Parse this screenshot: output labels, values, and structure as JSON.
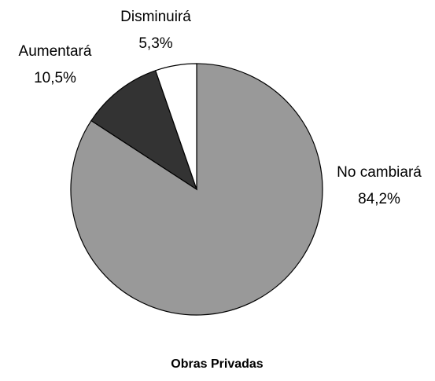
{
  "chart_data": {
    "type": "pie",
    "title": "Obras Privadas",
    "categories": [
      "No cambiará",
      "Aumentará",
      "Disminuirá"
    ],
    "values": [
      84.2,
      10.5,
      5.3
    ],
    "value_labels": [
      "84,2%",
      "10,5%",
      "5,3%"
    ],
    "colors": [
      "#999999",
      "#333333",
      "#ffffff"
    ]
  }
}
